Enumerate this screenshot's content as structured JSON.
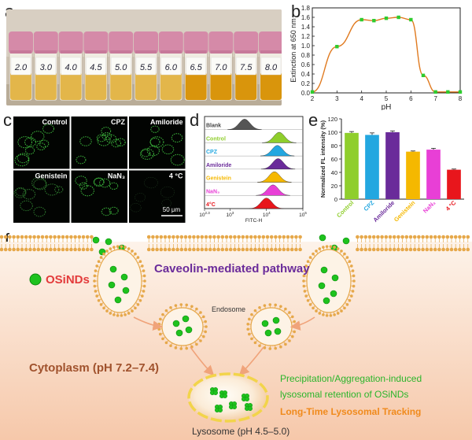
{
  "panels": {
    "a": "a",
    "b": "b",
    "c": "c",
    "d": "d",
    "e": "e",
    "f": "f"
  },
  "panel_a": {
    "vial_labels": [
      "2.0",
      "3.0",
      "4.0",
      "4.5",
      "5.0",
      "5.5",
      "6.0",
      "6.5",
      "7.0",
      "7.5",
      "8.0"
    ],
    "colors": {
      "cap": "#d58aa8",
      "liquid_pale": "#e3b64a",
      "liquid_dark": "#d9950c",
      "bg": "#cbbfae"
    }
  },
  "panel_b": {
    "chart_data": {
      "type": "scatter",
      "xlabel": "pH",
      "ylabel": "Extinction at 650 nm",
      "xlim": [
        2,
        8
      ],
      "ylim": [
        0,
        1.8
      ],
      "x_ticks": [
        "2",
        "3",
        "4",
        "5",
        "6",
        "7",
        "8"
      ],
      "y_ticks": [
        "0.0",
        "0.2",
        "0.4",
        "0.6",
        "0.8",
        "1.0",
        "1.2",
        "1.4",
        "1.6",
        "1.8"
      ],
      "points": [
        [
          2.0,
          0.02
        ],
        [
          3.0,
          0.98
        ],
        [
          4.0,
          1.55
        ],
        [
          4.5,
          1.53
        ],
        [
          5.0,
          1.58
        ],
        [
          5.5,
          1.6
        ],
        [
          6.0,
          1.55
        ],
        [
          6.5,
          0.37
        ],
        [
          7.0,
          0.02
        ],
        [
          7.5,
          0.02
        ],
        [
          8.0,
          0.02
        ]
      ],
      "colors": {
        "marker": "#2ecc2e",
        "fit": "#e07a1f"
      }
    }
  },
  "panel_c": {
    "labels": [
      "Control",
      "CPZ",
      "Amiloride",
      "Genistein",
      "NaN3",
      "4 °C"
    ],
    "scale_bar": "50 μm"
  },
  "panel_d": {
    "chart_data": {
      "type": "area",
      "xlabel": "FITC-H",
      "x_ticks": [
        {
          "base": "10",
          "exp": "2.3"
        },
        {
          "base": "10",
          "exp": "3"
        },
        {
          "base": "10",
          "exp": "4"
        },
        {
          "base": "10",
          "exp": "5"
        }
      ],
      "series": [
        {
          "name": "Blank",
          "peak_log": 3.4,
          "color": "#555555"
        },
        {
          "name": "Control",
          "peak_log": 4.35,
          "color": "#8fce2c"
        },
        {
          "name": "CPZ",
          "peak_log": 4.3,
          "color": "#23a7e0"
        },
        {
          "name": "Amiloride",
          "peak_log": 4.32,
          "color": "#6a2b9a"
        },
        {
          "name": "Genistein",
          "peak_log": 4.22,
          "color": "#f5b800"
        },
        {
          "name": "NaN3",
          "peak_log": 4.18,
          "color": "#e83fd6"
        },
        {
          "name": "4°C",
          "peak_log": 4.0,
          "color": "#e8161c"
        }
      ]
    }
  },
  "panel_e": {
    "chart_data": {
      "type": "bar",
      "ylabel": "Normalized FL intensity (%)",
      "ylim": [
        0,
        120
      ],
      "y_ticks": [
        "0",
        "20",
        "40",
        "60",
        "80",
        "100",
        "120"
      ],
      "categories": [
        "Control",
        "CPZ",
        "Amiloride",
        "Genistein",
        "NaN3",
        "4 °C"
      ],
      "values": [
        99,
        96,
        100,
        71,
        74,
        44
      ],
      "errors": [
        2,
        3,
        2,
        1,
        2,
        1
      ],
      "colors": [
        "#8fce2c",
        "#23a7e0",
        "#6a2b9a",
        "#f5b800",
        "#e83fd6",
        "#e8161c"
      ]
    }
  },
  "panel_f": {
    "legend_label": "OSiNDs",
    "pathway": "Caveolin-mediated pathway",
    "endosome": "Endosome",
    "cytoplasm": "Cytoplasm (pH 7.2–7.4)",
    "retention_line1": "Precipitation/Aggregation-induced",
    "retention_line2": "lysosomal retention of OSiNDs",
    "tracking": "Long-Time Lysosomal Tracking",
    "lysosome": "Lysosome (pH 4.5–5.0)",
    "colors": {
      "pathway": "#6a2b9a",
      "cytoplasm": "#a0522d",
      "retention": "#2bb52b",
      "tracking": "#f08a1c",
      "dots": "#1ec21e",
      "cell_bg": "#fbe7d8",
      "membrane": "#e6a84a"
    }
  }
}
